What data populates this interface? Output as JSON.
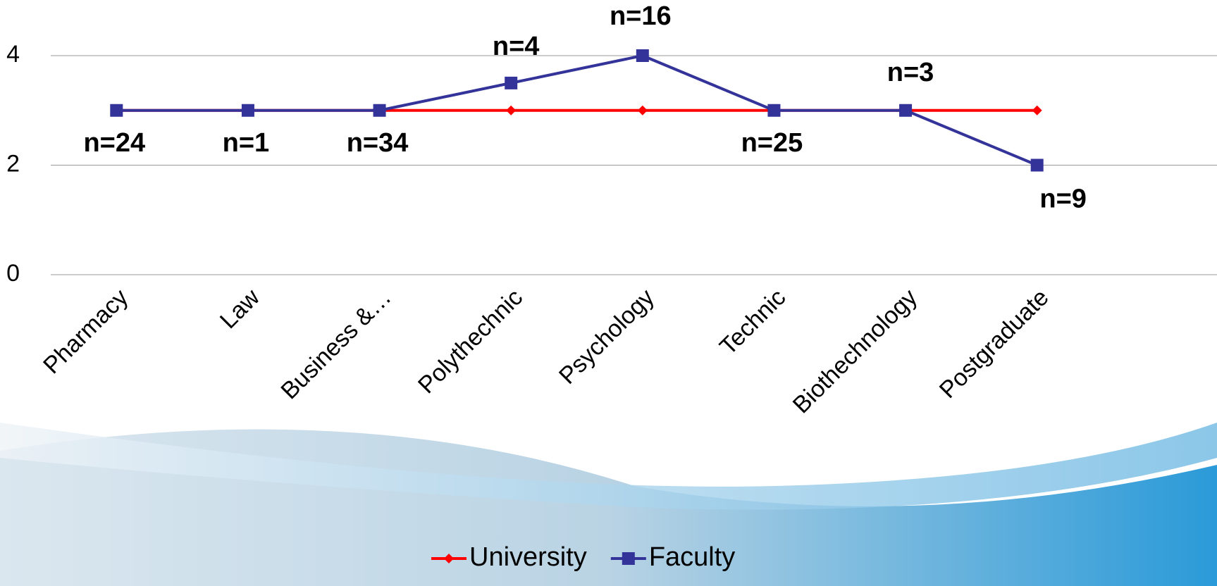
{
  "chart_data": {
    "type": "line",
    "categories": [
      "Pharmacy",
      "Law",
      "Business &…",
      "Polythechnic",
      "Psychology",
      "Technic",
      "Biothechnology",
      "Postgraduate"
    ],
    "series": [
      {
        "name": "University",
        "color": "#ff0000",
        "marker": "diamond",
        "values": [
          3,
          3,
          3,
          3,
          3,
          3,
          3,
          3
        ]
      },
      {
        "name": "Faculty",
        "color": "#333399",
        "marker": "square",
        "values": [
          3,
          3,
          3,
          3.5,
          4,
          3,
          3,
          2
        ]
      }
    ],
    "annotations": [
      "n=24",
      "n=1",
      "n=34",
      "n=4",
      "n=16",
      "n=25",
      "n=3",
      "n=9"
    ],
    "ylim": [
      0,
      4
    ],
    "yticks": [
      0,
      2,
      4
    ],
    "grid": true,
    "legend": "bottom"
  }
}
